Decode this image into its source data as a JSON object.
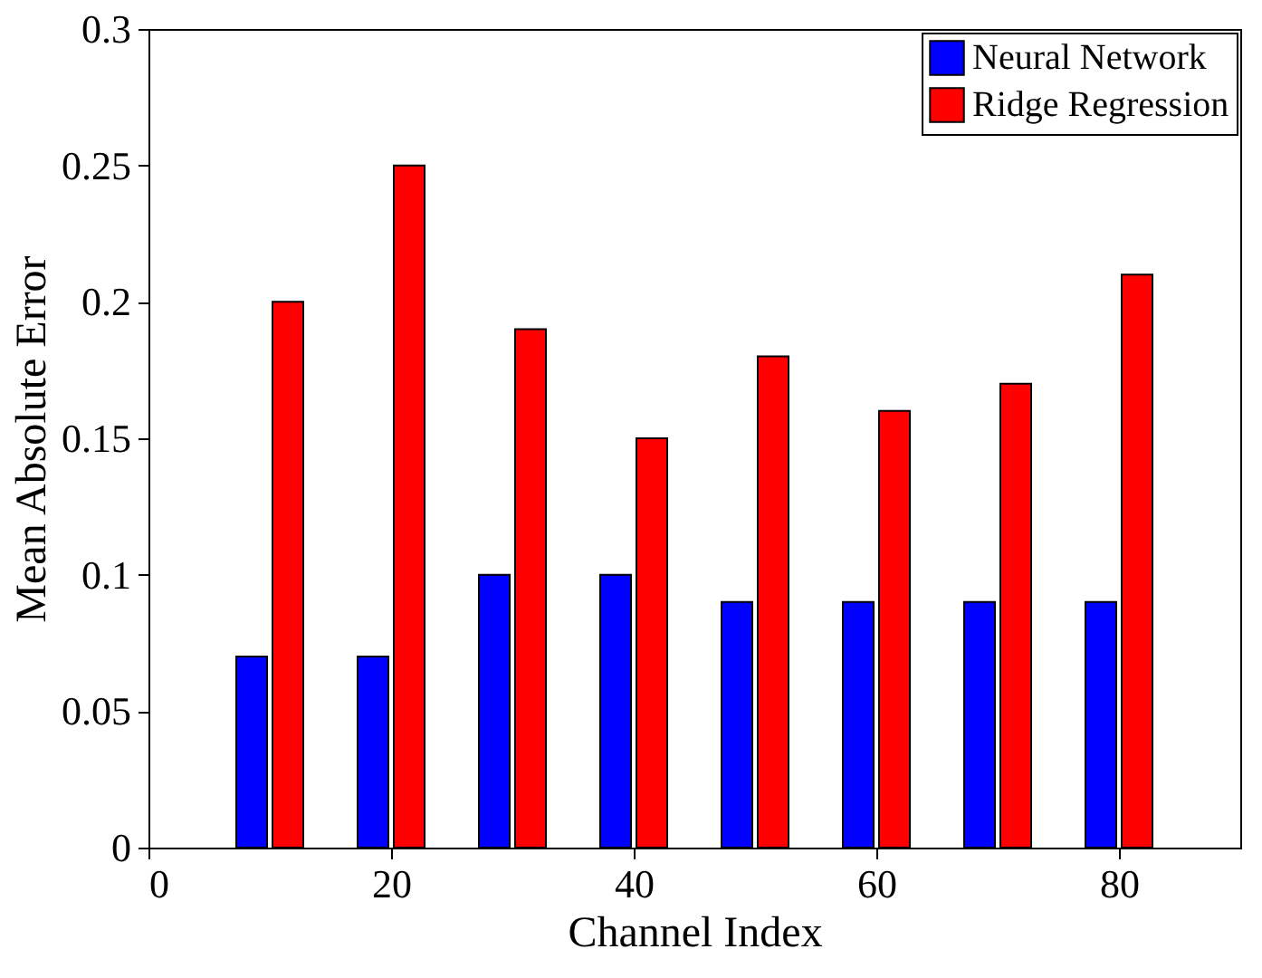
{
  "chart_data": {
    "type": "bar",
    "xlabel": "Channel Index",
    "ylabel": "Mean Absolute Error",
    "x": [
      10,
      20,
      30,
      40,
      50,
      60,
      70,
      80
    ],
    "series": [
      {
        "name": "Neural Network",
        "color": "#0000ff",
        "values": [
          0.07,
          0.07,
          0.1,
          0.1,
          0.09,
          0.09,
          0.09,
          0.09
        ]
      },
      {
        "name": "Ridge Regression",
        "color": "#ff0000",
        "values": [
          0.2,
          0.25,
          0.19,
          0.15,
          0.18,
          0.16,
          0.17,
          0.21
        ]
      }
    ],
    "xlim": [
      0,
      90
    ],
    "xticks": [
      0,
      20,
      40,
      60,
      80
    ],
    "ylim": [
      0,
      0.3
    ],
    "yticks": [
      0,
      0.05,
      0.1,
      0.15,
      0.2,
      0.25,
      0.3
    ],
    "grid": false,
    "legend": "top right"
  }
}
